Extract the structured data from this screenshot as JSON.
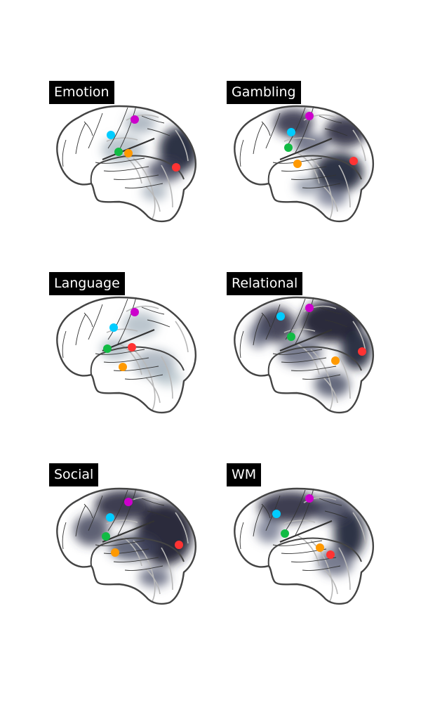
{
  "colors": {
    "outline": "#444444",
    "sulci": "#333333",
    "faint": "#b8b8b8",
    "activation_dark": "#1a1a2e",
    "activation_mid": "#5a5f7a",
    "activation_light": "#b8d6d6"
  },
  "markers": [
    {
      "name": "magenta",
      "color": "#cc00cc"
    },
    {
      "name": "cyan",
      "color": "#00ccff"
    },
    {
      "name": "green",
      "color": "#11bb44"
    },
    {
      "name": "orange",
      "color": "#ff9900"
    },
    {
      "name": "red",
      "color": "#ff3333"
    }
  ],
  "panels": [
    {
      "id": "emotion",
      "title": "Emotion",
      "points": {
        "magenta": [
          122,
          55
        ],
        "cyan": [
          88,
          77
        ],
        "green": [
          99,
          101
        ],
        "orange": [
          113,
          103
        ],
        "red": [
          181,
          123
        ]
      },
      "blobs": [
        {
          "cx": 185,
          "cy": 98,
          "rx": 28,
          "ry": 32,
          "level": 0.95
        },
        {
          "cx": 165,
          "cy": 128,
          "rx": 25,
          "ry": 16,
          "level": 0.75
        },
        {
          "cx": 105,
          "cy": 98,
          "rx": 30,
          "ry": 20,
          "level": 0.25
        },
        {
          "cx": 130,
          "cy": 60,
          "rx": 22,
          "ry": 15,
          "level": 0.3
        },
        {
          "cx": 150,
          "cy": 158,
          "rx": 18,
          "ry": 12,
          "level": 0.3
        }
      ]
    },
    {
      "id": "gambling",
      "title": "Gambling",
      "points": {
        "magenta": [
          118,
          50
        ],
        "cyan": [
          92,
          73
        ],
        "green": [
          88,
          95
        ],
        "orange": [
          101,
          118
        ],
        "red": [
          181,
          114
        ]
      },
      "blobs": [
        {
          "cx": 160,
          "cy": 130,
          "rx": 35,
          "ry": 28,
          "level": 0.95
        },
        {
          "cx": 170,
          "cy": 72,
          "rx": 30,
          "ry": 22,
          "level": 0.9
        },
        {
          "cx": 95,
          "cy": 60,
          "rx": 28,
          "ry": 20,
          "level": 0.85
        },
        {
          "cx": 120,
          "cy": 90,
          "rx": 25,
          "ry": 15,
          "level": 0.6
        },
        {
          "cx": 150,
          "cy": 165,
          "rx": 22,
          "ry": 14,
          "level": 0.5
        },
        {
          "cx": 115,
          "cy": 150,
          "rx": 18,
          "ry": 12,
          "level": 0.4
        }
      ]
    },
    {
      "id": "language",
      "title": "Language",
      "points": {
        "magenta": [
          122,
          57
        ],
        "cyan": [
          92,
          79
        ],
        "green": [
          83,
          109
        ],
        "orange": [
          105,
          135
        ],
        "red": [
          118,
          107
        ]
      },
      "blobs": [
        {
          "cx": 150,
          "cy": 130,
          "rx": 30,
          "ry": 20,
          "level": 0.3
        },
        {
          "cx": 130,
          "cy": 75,
          "rx": 25,
          "ry": 18,
          "level": 0.25
        },
        {
          "cx": 95,
          "cy": 110,
          "rx": 22,
          "ry": 15,
          "level": 0.25
        },
        {
          "cx": 170,
          "cy": 150,
          "rx": 20,
          "ry": 12,
          "level": 0.2
        }
      ]
    },
    {
      "id": "relational",
      "title": "Relational",
      "points": {
        "magenta": [
          118,
          51
        ],
        "cyan": [
          77,
          63
        ],
        "green": [
          92,
          92
        ],
        "orange": [
          155,
          126
        ],
        "red": [
          193,
          113
        ]
      },
      "blobs": [
        {
          "cx": 150,
          "cy": 70,
          "rx": 45,
          "ry": 30,
          "level": 0.98
        },
        {
          "cx": 185,
          "cy": 110,
          "rx": 22,
          "ry": 28,
          "level": 0.95
        },
        {
          "cx": 70,
          "cy": 75,
          "rx": 28,
          "ry": 25,
          "level": 0.85
        },
        {
          "cx": 105,
          "cy": 115,
          "rx": 30,
          "ry": 20,
          "level": 0.6
        },
        {
          "cx": 150,
          "cy": 160,
          "rx": 25,
          "ry": 18,
          "level": 0.7
        },
        {
          "cx": 45,
          "cy": 90,
          "rx": 14,
          "ry": 18,
          "level": 0.6
        }
      ]
    },
    {
      "id": "social",
      "title": "Social",
      "points": {
        "magenta": [
          113,
          55
        ],
        "cyan": [
          87,
          77
        ],
        "green": [
          81,
          104
        ],
        "orange": [
          94,
          127
        ],
        "red": [
          185,
          116
        ]
      },
      "blobs": [
        {
          "cx": 165,
          "cy": 100,
          "rx": 40,
          "ry": 45,
          "level": 0.98
        },
        {
          "cx": 105,
          "cy": 60,
          "rx": 40,
          "ry": 22,
          "level": 0.9
        },
        {
          "cx": 60,
          "cy": 95,
          "rx": 25,
          "ry": 22,
          "level": 0.75
        },
        {
          "cx": 120,
          "cy": 120,
          "rx": 35,
          "ry": 18,
          "level": 0.7
        },
        {
          "cx": 150,
          "cy": 162,
          "rx": 22,
          "ry": 14,
          "level": 0.6
        }
      ]
    },
    {
      "id": "wm",
      "title": "WM",
      "points": {
        "magenta": [
          118,
          50
        ],
        "cyan": [
          71,
          72
        ],
        "green": [
          83,
          100
        ],
        "orange": [
          133,
          120
        ],
        "red": [
          148,
          130
        ]
      },
      "blobs": [
        {
          "cx": 90,
          "cy": 62,
          "rx": 45,
          "ry": 22,
          "level": 0.9
        },
        {
          "cx": 175,
          "cy": 100,
          "rx": 22,
          "ry": 35,
          "level": 0.95
        },
        {
          "cx": 150,
          "cy": 65,
          "rx": 30,
          "ry": 20,
          "level": 0.75
        },
        {
          "cx": 155,
          "cy": 140,
          "rx": 25,
          "ry": 20,
          "level": 0.6
        },
        {
          "cx": 60,
          "cy": 95,
          "rx": 18,
          "ry": 18,
          "level": 0.5
        }
      ]
    }
  ]
}
